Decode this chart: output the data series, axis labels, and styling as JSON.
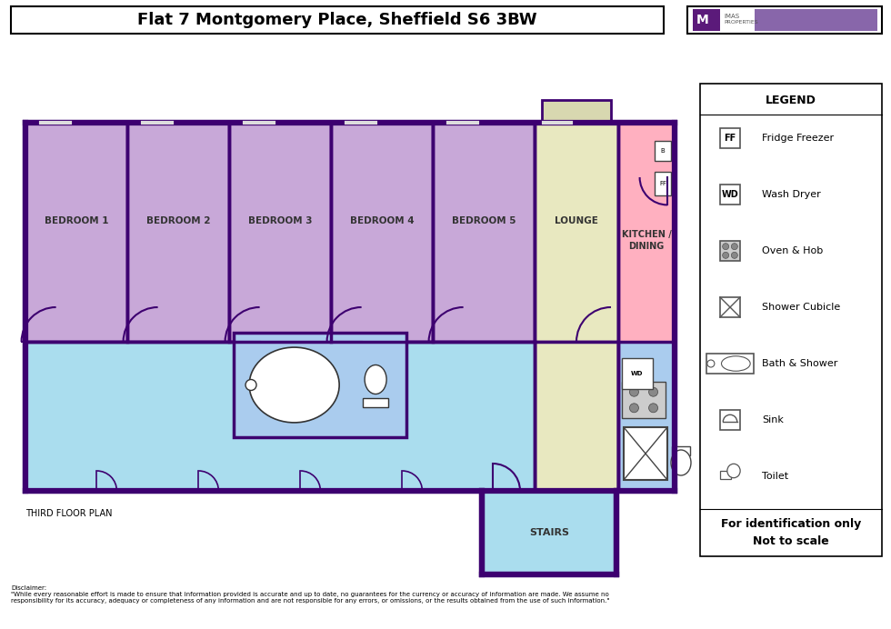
{
  "title": "Flat 7 Montgomery Place, Sheffield S6 3BW",
  "floor_label": "THIRD FLOOR PLAN",
  "wall_color": "#3D0070",
  "bedroom_color": "#C8A8D8",
  "lounge_color": "#E8E8C0",
  "kitchen_color": "#FFB0C0",
  "corridor_color": "#AADDEE",
  "bathroom_color": "#AACCEE",
  "stairs_color": "#AADDEE",
  "disclaimer": "Disclaimer:\n\"While every reasonable effort is made to ensure that information provided is accurate and up to date, no guarantees for the currency or accuracy of information are made. We assume no\nresponsibility for its accuracy, adequacy or completeness of any information and are not responsible for any errors, or omissions, or the results obtained from the use of such information.\""
}
